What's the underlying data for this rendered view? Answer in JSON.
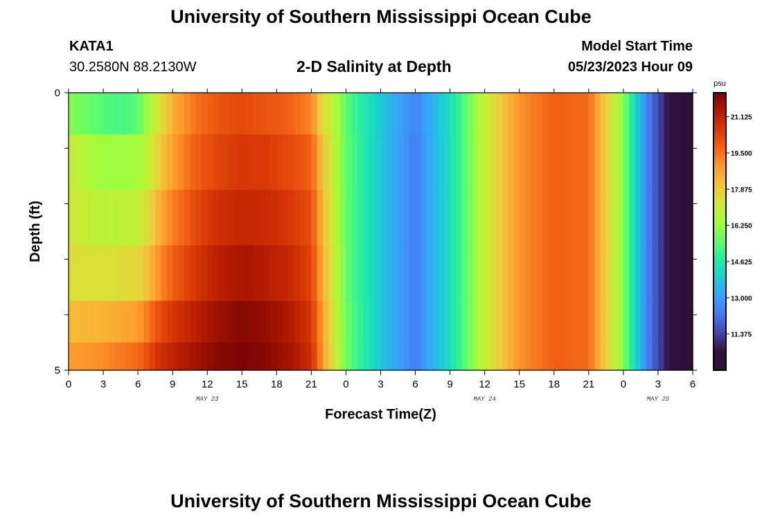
{
  "page": {
    "title": "University of Southern Mississippi Ocean Cube",
    "station_id": "KATA1",
    "station_coords": "30.2580N  88.2130W",
    "subtitle": "2-D Salinity at Depth",
    "model_start_label": "Model Start Time",
    "model_start_value": "05/23/2023 Hour 09",
    "footer_title": "University of Southern Mississippi Ocean Cube"
  },
  "colors": {
    "colormap": [
      "#2b0f38",
      "#30123b",
      "#4145ab",
      "#4675ed",
      "#39a2fc",
      "#1bcfd4",
      "#24eca6",
      "#61fc6c",
      "#a4fc3b",
      "#d1e834",
      "#f3c63a",
      "#fe9b2d",
      "#f36315",
      "#d93806",
      "#b11901",
      "#7a0403"
    ]
  },
  "chart_data": {
    "type": "heatmap",
    "title": "2-D Salinity at Depth",
    "xlabel": "Forecast Time(Z)",
    "ylabel": "Depth (ft)",
    "x_tick_labels": [
      "0",
      "3",
      "6",
      "9",
      "12",
      "15",
      "18",
      "21",
      "0",
      "3",
      "6",
      "9",
      "12",
      "15",
      "18",
      "21",
      "0",
      "3",
      "6"
    ],
    "x_range_hours": [
      0,
      54
    ],
    "date_labels": [
      {
        "label": "MAY 23",
        "hour": 12
      },
      {
        "label": "MAY 24",
        "hour": 36
      },
      {
        "label": "MAY 25",
        "hour": 51
      }
    ],
    "y_tick_labels": [
      "0",
      "5"
    ],
    "y_range": [
      0,
      5
    ],
    "y_inverted": true,
    "colorbar": {
      "unit": "psu",
      "range": [
        9.75,
        22.2
      ],
      "tick_values": [
        21.125,
        19.5,
        17.875,
        16.25,
        14.625,
        13.0,
        11.375
      ],
      "tick_labels": [
        "21.125",
        "19.500",
        "17.875",
        "16.250",
        "14.625",
        "13.000",
        "11.375"
      ]
    },
    "depth_levels": [
      0.25,
      1.25,
      2.25,
      3.25,
      4.25,
      4.75
    ],
    "salinity_by_depth": [
      {
        "depth": 0.25,
        "hours": [
          0,
          3,
          4.5,
          6,
          8,
          9,
          11,
          13,
          15,
          17,
          19,
          21,
          22,
          23,
          24,
          27,
          30,
          33,
          36,
          39,
          42,
          45,
          48,
          50,
          52,
          54
        ],
        "values": [
          16.0,
          15.4,
          15.2,
          15.5,
          17.5,
          18.5,
          19.5,
          20.0,
          20.2,
          20.0,
          19.8,
          19.2,
          17.5,
          16.7,
          15.5,
          13.8,
          12.5,
          14.3,
          17.0,
          19.0,
          19.8,
          19.6,
          16.0,
          12.5,
          10.5,
          9.9
        ]
      },
      {
        "depth": 1.25,
        "hours": [
          0,
          3,
          6,
          7,
          8,
          9,
          11,
          13,
          15,
          17,
          19,
          21,
          22,
          23,
          24,
          27,
          30,
          33,
          36,
          39,
          42,
          45,
          48,
          50,
          52,
          54
        ],
        "values": [
          17.0,
          16.3,
          16.4,
          17.0,
          18.0,
          18.8,
          19.8,
          20.3,
          20.6,
          20.5,
          20.2,
          19.8,
          18.0,
          16.8,
          15.6,
          13.8,
          12.4,
          14.3,
          17.0,
          19.0,
          19.8,
          19.6,
          16.0,
          12.5,
          10.5,
          9.9
        ]
      },
      {
        "depth": 2.25,
        "hours": [
          0,
          3,
          6,
          7,
          8,
          9,
          11,
          13,
          15,
          17,
          19,
          21,
          22,
          23,
          24,
          27,
          30,
          33,
          36,
          39,
          42,
          45,
          48,
          50,
          52,
          54
        ],
        "values": [
          17.2,
          16.8,
          16.9,
          17.6,
          18.6,
          19.3,
          20.2,
          20.8,
          21.0,
          20.9,
          20.6,
          20.1,
          18.3,
          16.9,
          15.6,
          13.8,
          12.4,
          14.3,
          17.0,
          19.0,
          19.8,
          19.6,
          16.0,
          12.5,
          10.5,
          9.9
        ]
      },
      {
        "depth": 3.25,
        "hours": [
          0,
          3,
          6,
          7,
          8,
          9,
          11,
          13,
          15,
          17,
          19,
          21,
          22,
          23,
          24,
          27,
          30,
          33,
          36,
          39,
          42,
          45,
          48,
          50,
          52,
          54
        ],
        "values": [
          17.5,
          17.4,
          17.6,
          18.3,
          19.2,
          19.8,
          20.6,
          21.2,
          21.5,
          21.3,
          21.0,
          20.3,
          18.5,
          17.0,
          15.6,
          13.8,
          12.4,
          14.3,
          17.0,
          19.0,
          19.8,
          19.6,
          16.0,
          12.5,
          10.5,
          9.9
        ]
      },
      {
        "depth": 4.25,
        "hours": [
          0,
          3,
          6,
          7,
          8,
          9,
          11,
          13,
          15,
          17,
          19,
          21,
          22,
          23,
          24,
          27,
          30,
          33,
          36,
          39,
          42,
          45,
          48,
          50,
          52,
          54
        ],
        "values": [
          18.3,
          18.4,
          18.8,
          19.5,
          20.2,
          20.6,
          21.2,
          21.7,
          22.0,
          21.8,
          21.4,
          20.6,
          18.7,
          17.1,
          15.7,
          13.8,
          12.4,
          14.3,
          17.0,
          19.0,
          19.8,
          19.6,
          16.0,
          12.5,
          10.5,
          9.9
        ]
      },
      {
        "depth": 4.75,
        "hours": [
          0,
          3,
          6,
          7,
          8,
          9,
          11,
          13,
          15,
          17,
          19,
          21,
          22,
          23,
          24,
          27,
          30,
          33,
          36,
          39,
          42,
          45,
          48,
          50,
          52,
          54
        ],
        "values": [
          18.8,
          19.1,
          19.6,
          20.2,
          20.8,
          21.1,
          21.6,
          22.0,
          22.2,
          22.0,
          21.6,
          20.8,
          18.8,
          17.2,
          15.7,
          13.8,
          12.4,
          14.3,
          17.0,
          19.0,
          19.8,
          19.6,
          16.0,
          12.5,
          10.5,
          9.9
        ]
      }
    ]
  }
}
